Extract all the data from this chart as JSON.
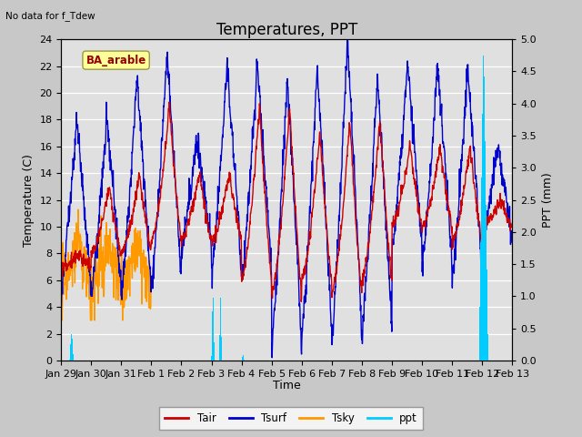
{
  "title": "Temperatures, PPT",
  "note": "No data for f_Tdew",
  "site_label": "BA_arable",
  "xlabel": "Time",
  "ylabel_left": "Temperature (C)",
  "ylabel_right": "PPT (mm)",
  "ylim_left": [
    0,
    24
  ],
  "ylim_right": [
    0,
    5.0
  ],
  "xlim": [
    0,
    15
  ],
  "xtick_labels": [
    "Jan 29",
    "Jan 30",
    "Jan 31",
    "Feb 1",
    "Feb 2",
    "Feb 3",
    "Feb 4",
    "Feb 5",
    "Feb 6",
    "Feb 7",
    "Feb 8",
    "Feb 9",
    "Feb 10",
    "Feb 11",
    "Feb 12",
    "Feb 13"
  ],
  "xtick_positions": [
    0,
    1,
    2,
    3,
    4,
    5,
    6,
    7,
    8,
    9,
    10,
    11,
    12,
    13,
    14,
    15
  ],
  "tair_color": "#cc0000",
  "tsurf_color": "#0000cc",
  "tsky_color": "#ff9900",
  "ppt_color": "#00ccff",
  "title_fontsize": 12,
  "label_fontsize": 9,
  "tick_fontsize": 8,
  "yticks_left": [
    0,
    2,
    4,
    6,
    8,
    10,
    12,
    14,
    16,
    18,
    20,
    22,
    24
  ],
  "yticks_right": [
    0.0,
    0.5,
    1.0,
    1.5,
    2.0,
    2.5,
    3.0,
    3.5,
    4.0,
    4.5,
    5.0
  ],
  "fig_bg": "#c8c8c8",
  "plot_bg": "#e0e0e0",
  "grid_color": "#ffffff"
}
